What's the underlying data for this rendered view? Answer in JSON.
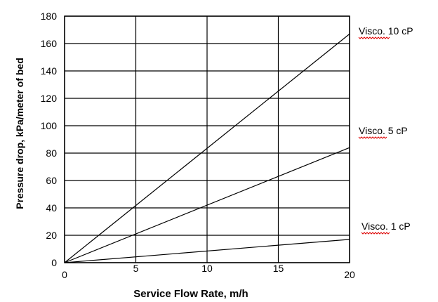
{
  "chart_data": {
    "type": "line",
    "xlabel": "Service Flow Rate, m/h",
    "ylabel": "Pressure drop, kPa/meter of bed",
    "xlim": [
      0,
      20
    ],
    "ylim": [
      0,
      180
    ],
    "x_ticks": [
      "0",
      "5",
      "10",
      "15",
      "20"
    ],
    "y_ticks": [
      "0",
      "20",
      "40",
      "60",
      "80",
      "100",
      "120",
      "140",
      "160",
      "180"
    ],
    "grid": true,
    "series": [
      {
        "name": "Visco. 10 cP",
        "x": [
          0,
          20
        ],
        "y": [
          0,
          167
        ]
      },
      {
        "name": "Visco. 5 cP",
        "x": [
          0,
          20
        ],
        "y": [
          0,
          84
        ]
      },
      {
        "name": "Visco. 1 cP",
        "x": [
          0,
          20
        ],
        "y": [
          0,
          17
        ]
      }
    ],
    "colors": {
      "line": "#000000",
      "grid": "#000000",
      "spellcheck": "#dd0000"
    }
  }
}
